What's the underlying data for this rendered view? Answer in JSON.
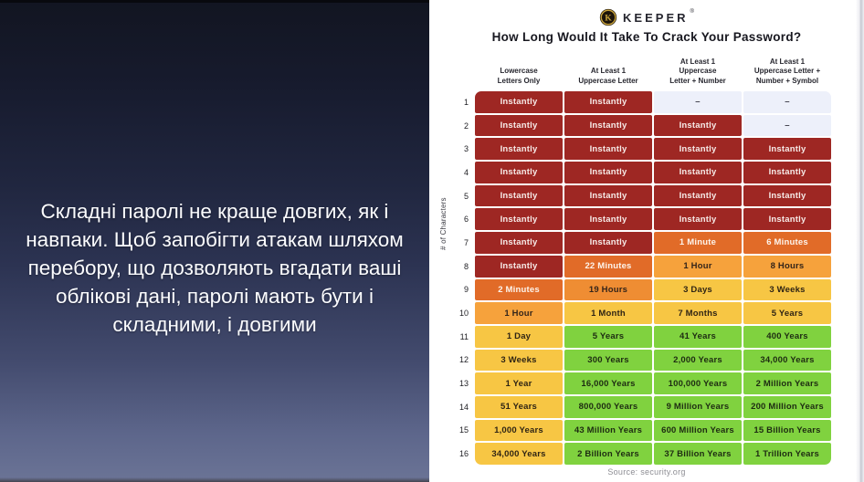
{
  "left_panel": {
    "caption": "Складні паролі не краще довгих, як і навпаки. Щоб запобігти атакам шляхом перебору, що дозволяють вгадати ваші облікові дані, паролі мають бути і складними, і довгими"
  },
  "infographic": {
    "brand": "KEEPER",
    "registered_mark": "®",
    "title": "How Long Would It Take To Crack Your Password?",
    "y_axis_label": "# of Characters",
    "source": "Source: security.org",
    "columns": [
      "Lowercase\nLetters Only",
      "At Least 1\nUppercase Letter",
      "At Least 1\nUppercase\nLetter + Number",
      "At Least 1\nUppercase Letter +\nNumber + Symbol"
    ],
    "rows": [
      {
        "n": "1",
        "cells": [
          {
            "t": "Instantly",
            "l": "red"
          },
          {
            "t": "Instantly",
            "l": "red"
          },
          {
            "t": "–",
            "l": "empty"
          },
          {
            "t": "–",
            "l": "empty"
          }
        ]
      },
      {
        "n": "2",
        "cells": [
          {
            "t": "Instantly",
            "l": "red"
          },
          {
            "t": "Instantly",
            "l": "red"
          },
          {
            "t": "Instantly",
            "l": "red"
          },
          {
            "t": "–",
            "l": "empty"
          }
        ]
      },
      {
        "n": "3",
        "cells": [
          {
            "t": "Instantly",
            "l": "red"
          },
          {
            "t": "Instantly",
            "l": "red"
          },
          {
            "t": "Instantly",
            "l": "red"
          },
          {
            "t": "Instantly",
            "l": "red"
          }
        ]
      },
      {
        "n": "4",
        "cells": [
          {
            "t": "Instantly",
            "l": "red"
          },
          {
            "t": "Instantly",
            "l": "red"
          },
          {
            "t": "Instantly",
            "l": "red"
          },
          {
            "t": "Instantly",
            "l": "red"
          }
        ]
      },
      {
        "n": "5",
        "cells": [
          {
            "t": "Instantly",
            "l": "red"
          },
          {
            "t": "Instantly",
            "l": "red"
          },
          {
            "t": "Instantly",
            "l": "red"
          },
          {
            "t": "Instantly",
            "l": "red"
          }
        ]
      },
      {
        "n": "6",
        "cells": [
          {
            "t": "Instantly",
            "l": "red"
          },
          {
            "t": "Instantly",
            "l": "red"
          },
          {
            "t": "Instantly",
            "l": "red"
          },
          {
            "t": "Instantly",
            "l": "red"
          }
        ]
      },
      {
        "n": "7",
        "cells": [
          {
            "t": "Instantly",
            "l": "red"
          },
          {
            "t": "Instantly",
            "l": "red"
          },
          {
            "t": "1 Minute",
            "l": "darkorange"
          },
          {
            "t": "6 Minutes",
            "l": "darkorange"
          }
        ]
      },
      {
        "n": "8",
        "cells": [
          {
            "t": "Instantly",
            "l": "red"
          },
          {
            "t": "22 Minutes",
            "l": "darkorange"
          },
          {
            "t": "1 Hour",
            "l": "lightorange"
          },
          {
            "t": "8 Hours",
            "l": "lightorange"
          }
        ]
      },
      {
        "n": "9",
        "cells": [
          {
            "t": "2 Minutes",
            "l": "darkorange"
          },
          {
            "t": "19 Hours",
            "l": "orange"
          },
          {
            "t": "3 Days",
            "l": "yellow"
          },
          {
            "t": "3 Weeks",
            "l": "yellow"
          }
        ]
      },
      {
        "n": "10",
        "cells": [
          {
            "t": "1 Hour",
            "l": "lightorange"
          },
          {
            "t": "1 Month",
            "l": "yellow"
          },
          {
            "t": "7 Months",
            "l": "yellow"
          },
          {
            "t": "5 Years",
            "l": "yellow"
          }
        ]
      },
      {
        "n": "11",
        "cells": [
          {
            "t": "1 Day",
            "l": "yellow"
          },
          {
            "t": "5 Years",
            "l": "green"
          },
          {
            "t": "41 Years",
            "l": "green"
          },
          {
            "t": "400 Years",
            "l": "green"
          }
        ]
      },
      {
        "n": "12",
        "cells": [
          {
            "t": "3 Weeks",
            "l": "yellow"
          },
          {
            "t": "300 Years",
            "l": "green"
          },
          {
            "t": "2,000 Years",
            "l": "green"
          },
          {
            "t": "34,000 Years",
            "l": "green"
          }
        ]
      },
      {
        "n": "13",
        "cells": [
          {
            "t": "1 Year",
            "l": "yellow"
          },
          {
            "t": "16,000 Years",
            "l": "green"
          },
          {
            "t": "100,000 Years",
            "l": "green"
          },
          {
            "t": "2 Million Years",
            "l": "green"
          }
        ]
      },
      {
        "n": "14",
        "cells": [
          {
            "t": "51 Years",
            "l": "yellow"
          },
          {
            "t": "800,000 Years",
            "l": "green"
          },
          {
            "t": "9 Million Years",
            "l": "green"
          },
          {
            "t": "200 Million Years",
            "l": "green"
          }
        ]
      },
      {
        "n": "15",
        "cells": [
          {
            "t": "1,000 Years",
            "l": "yellow"
          },
          {
            "t": "43 Million Years",
            "l": "green"
          },
          {
            "t": "600 Million Years",
            "l": "green"
          },
          {
            "t": "15 Billion Years",
            "l": "green"
          }
        ]
      },
      {
        "n": "16",
        "cells": [
          {
            "t": "34,000 Years",
            "l": "yellow"
          },
          {
            "t": "2 Billion Years",
            "l": "green"
          },
          {
            "t": "37 Billion Years",
            "l": "green"
          },
          {
            "t": "1 Trillion Years",
            "l": "green"
          }
        ]
      }
    ]
  },
  "levels": {
    "red": {
      "bg": "#9e2723",
      "fg": "#f7ebe8"
    },
    "darkorange": {
      "bg": "#e16b28",
      "fg": "#fdf4ec"
    },
    "orange": {
      "bg": "#ef8d33",
      "fg": "#33241a"
    },
    "lightorange": {
      "bg": "#f6a23c",
      "fg": "#33241a"
    },
    "yellow": {
      "bg": "#f7c644",
      "fg": "#2f2414"
    },
    "green": {
      "bg": "#80d23f",
      "fg": "#1d2b12"
    },
    "empty": {
      "bg": "#edf0fa",
      "fg": "#3a3a46"
    }
  },
  "chart_data": {
    "type": "heatmap",
    "title": "How Long Would It Take To Crack Your Password?",
    "ylabel": "# of Characters",
    "x_categories": [
      "Lowercase Letters Only",
      "At Least 1 Uppercase Letter",
      "At Least 1 Uppercase Letter + Number",
      "At Least 1 Uppercase Letter + Number + Symbol"
    ],
    "y_categories": [
      1,
      2,
      3,
      4,
      5,
      6,
      7,
      8,
      9,
      10,
      11,
      12,
      13,
      14,
      15,
      16
    ],
    "values": [
      [
        "Instantly",
        "Instantly",
        "–",
        "–"
      ],
      [
        "Instantly",
        "Instantly",
        "Instantly",
        "–"
      ],
      [
        "Instantly",
        "Instantly",
        "Instantly",
        "Instantly"
      ],
      [
        "Instantly",
        "Instantly",
        "Instantly",
        "Instantly"
      ],
      [
        "Instantly",
        "Instantly",
        "Instantly",
        "Instantly"
      ],
      [
        "Instantly",
        "Instantly",
        "Instantly",
        "Instantly"
      ],
      [
        "Instantly",
        "Instantly",
        "1 Minute",
        "6 Minutes"
      ],
      [
        "Instantly",
        "22 Minutes",
        "1 Hour",
        "8 Hours"
      ],
      [
        "2 Minutes",
        "19 Hours",
        "3 Days",
        "3 Weeks"
      ],
      [
        "1 Hour",
        "1 Month",
        "7 Months",
        "5 Years"
      ],
      [
        "1 Day",
        "5 Years",
        "41 Years",
        "400 Years"
      ],
      [
        "3 Weeks",
        "300 Years",
        "2,000 Years",
        "34,000 Years"
      ],
      [
        "1 Year",
        "16,000 Years",
        "100,000 Years",
        "2 Million Years"
      ],
      [
        "51 Years",
        "800,000 Years",
        "9 Million Years",
        "200 Million Years"
      ],
      [
        "1,000 Years",
        "43 Million Years",
        "600 Million Years",
        "15 Billion Years"
      ],
      [
        "34,000 Years",
        "2 Billion Years",
        "37 Billion Years",
        "1 Trillion Years"
      ]
    ],
    "legend_position": "none",
    "grid": false,
    "source": "Source: security.org"
  }
}
